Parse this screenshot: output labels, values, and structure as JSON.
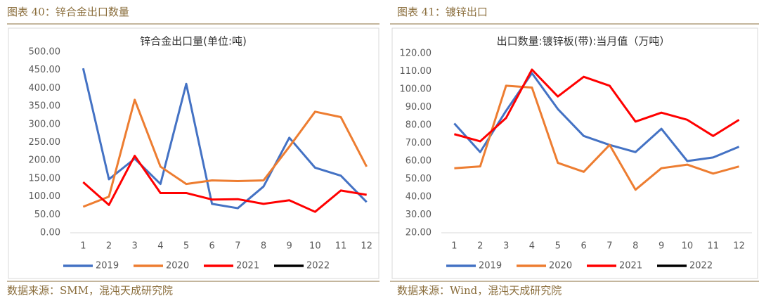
{
  "chart_data": [
    {
      "type": "line",
      "heading": "图表 40：锌合金出口数量",
      "title": "锌合金出口量(单位:吨)",
      "source": "数据来源：SMM，混沌天成研究院",
      "categories": [
        "1",
        "2",
        "3",
        "4",
        "5",
        "6",
        "7",
        "8",
        "9",
        "10",
        "11",
        "12"
      ],
      "ylim": [
        0,
        500
      ],
      "yticks": [
        {
          "value": 0,
          "label": "0.00"
        },
        {
          "value": 50,
          "label": "50.00"
        },
        {
          "value": 100,
          "label": "100.00"
        },
        {
          "value": 150,
          "label": "150.00"
        },
        {
          "value": 200,
          "label": "200.00"
        },
        {
          "value": 250,
          "label": "250.00"
        },
        {
          "value": 300,
          "label": "300.00"
        },
        {
          "value": 350,
          "label": "350.00"
        },
        {
          "value": 400,
          "label": "400.00"
        },
        {
          "value": 450,
          "label": "450.00"
        },
        {
          "value": 500,
          "label": "500.00"
        }
      ],
      "series": [
        {
          "name": "2019",
          "color": "#4472c4",
          "values": [
            455,
            148,
            205,
            135,
            412,
            80,
            68,
            128,
            263,
            180,
            158,
            85
          ]
        },
        {
          "name": "2020",
          "color": "#ed7d31",
          "values": [
            72,
            100,
            368,
            183,
            135,
            145,
            143,
            145,
            238,
            335,
            320,
            183
          ]
        },
        {
          "name": "2021",
          "color": "#ff0000",
          "values": [
            140,
            77,
            213,
            110,
            110,
            92,
            93,
            80,
            90,
            58,
            117,
            105
          ]
        },
        {
          "name": "2022",
          "color": "#000000",
          "values": [
            null,
            null,
            null,
            null,
            null,
            null,
            null,
            null,
            null,
            null,
            null,
            null
          ]
        }
      ]
    },
    {
      "type": "line",
      "heading": "图表 41：镀锌出口",
      "title": "出口数量:镀锌板(带):当月值（万吨）",
      "source": "数据来源：Wind，混沌天成研究院",
      "categories": [
        "1",
        "2",
        "3",
        "4",
        "5",
        "6",
        "7",
        "8",
        "9",
        "10",
        "11",
        "12"
      ],
      "ylim": [
        20,
        120
      ],
      "yticks": [
        {
          "value": 20,
          "label": "20.00"
        },
        {
          "value": 30,
          "label": "30.00"
        },
        {
          "value": 40,
          "label": "40.00"
        },
        {
          "value": 50,
          "label": "50.00"
        },
        {
          "value": 60,
          "label": "60.00"
        },
        {
          "value": 70,
          "label": "70.00"
        },
        {
          "value": 80,
          "label": "80.00"
        },
        {
          "value": 90,
          "label": "90.00"
        },
        {
          "value": 100,
          "label": "100.00"
        },
        {
          "value": 110,
          "label": "110.00"
        },
        {
          "value": 120,
          "label": "120.00"
        }
      ],
      "series": [
        {
          "name": "2019",
          "color": "#4472c4",
          "values": [
            81,
            65,
            88,
            109,
            89,
            74,
            69,
            65,
            78,
            60,
            62,
            68
          ]
        },
        {
          "name": "2020",
          "color": "#ed7d31",
          "values": [
            56,
            57,
            102,
            101,
            59,
            54,
            69,
            44,
            56,
            58,
            53,
            57
          ]
        },
        {
          "name": "2021",
          "color": "#ff0000",
          "values": [
            75,
            71,
            84,
            111,
            96,
            107,
            102,
            82,
            87,
            83,
            74,
            83
          ]
        },
        {
          "name": "2022",
          "color": "#000000",
          "values": [
            null,
            null,
            null,
            null,
            null,
            null,
            null,
            null,
            null,
            null,
            null,
            null
          ]
        }
      ]
    }
  ]
}
